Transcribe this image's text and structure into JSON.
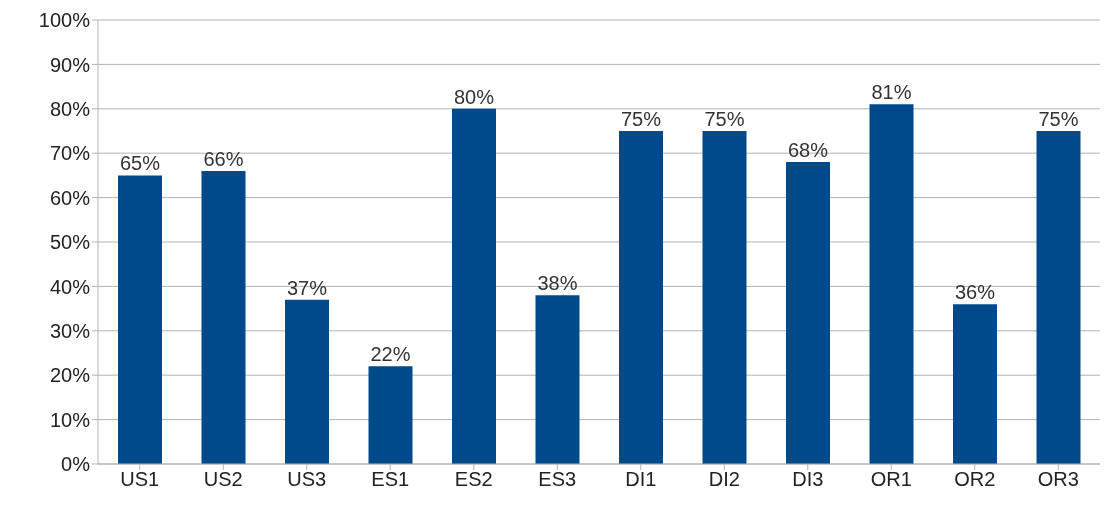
{
  "chart_data": {
    "type": "bar",
    "categories": [
      "US1",
      "US2",
      "US3",
      "ES1",
      "ES2",
      "ES3",
      "DI1",
      "DI2",
      "DI3",
      "OR1",
      "OR2",
      "OR3"
    ],
    "values": [
      65,
      66,
      37,
      22,
      80,
      38,
      75,
      75,
      68,
      81,
      36,
      75
    ],
    "value_labels": [
      "65%",
      "66%",
      "37%",
      "22%",
      "80%",
      "38%",
      "75%",
      "75%",
      "68%",
      "81%",
      "36%",
      "75%"
    ],
    "color": "#004a8c",
    "ylim": [
      0,
      100
    ],
    "yticks": [
      {
        "value": 0,
        "label": "0%"
      },
      {
        "value": 10,
        "label": "10%"
      },
      {
        "value": 20,
        "label": "20%"
      },
      {
        "value": 30,
        "label": "30%"
      },
      {
        "value": 40,
        "label": "40%"
      },
      {
        "value": 50,
        "label": "50%"
      },
      {
        "value": 60,
        "label": "60%"
      },
      {
        "value": 70,
        "label": "70%"
      },
      {
        "value": 80,
        "label": "80%"
      },
      {
        "value": 90,
        "label": "90%"
      },
      {
        "value": 100,
        "label": "100%"
      }
    ],
    "grid": "y"
  }
}
